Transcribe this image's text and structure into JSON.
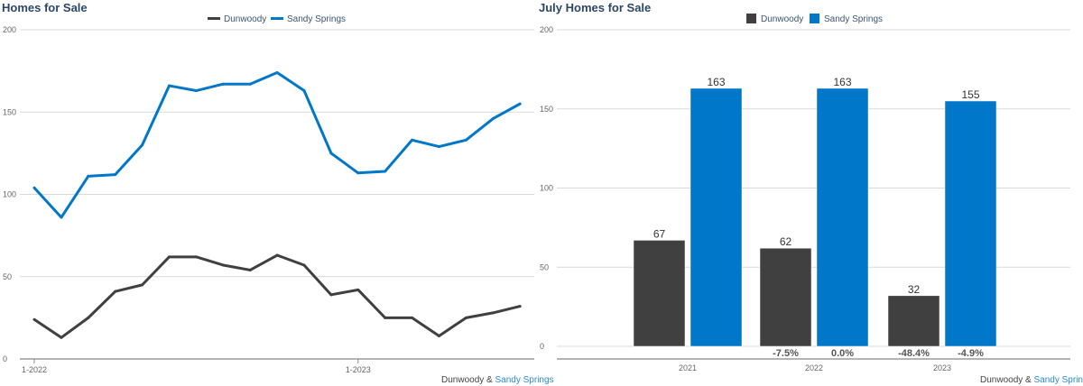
{
  "colors": {
    "Dunwoody": "#404040",
    "Sandy Springs": "#0077c8",
    "title": "#2c4766",
    "grid": "#d9d9d9"
  },
  "chart_data": [
    {
      "type": "line",
      "title": "Homes for Sale",
      "legend": [
        "Dunwoody",
        "Sandy Springs"
      ],
      "legend_position": "top",
      "ylim": [
        0,
        200
      ],
      "yticks": [
        0,
        50,
        100,
        150,
        200
      ],
      "grid": true,
      "x": [
        "1-2022",
        "2-2022",
        "3-2022",
        "4-2022",
        "5-2022",
        "6-2022",
        "7-2022",
        "8-2022",
        "9-2022",
        "10-2022",
        "11-2022",
        "12-2022",
        "1-2023",
        "2-2023",
        "3-2023",
        "4-2023",
        "5-2023",
        "6-2023",
        "7-2023"
      ],
      "xtick_labels": [
        "1-2022",
        "1-2023"
      ],
      "series": [
        {
          "name": "Dunwoody",
          "values": [
            24,
            13,
            25,
            41,
            45,
            62,
            62,
            57,
            54,
            63,
            57,
            39,
            42,
            25,
            25,
            14,
            25,
            28,
            32
          ]
        },
        {
          "name": "Sandy Springs",
          "values": [
            104,
            86,
            111,
            112,
            130,
            166,
            163,
            167,
            167,
            174,
            163,
            125,
            113,
            114,
            133,
            129,
            133,
            146,
            155
          ]
        }
      ],
      "credit": {
        "a": "Dunwoody",
        "sep": " & ",
        "b": "Sandy Springs"
      }
    },
    {
      "type": "bar",
      "title": "July Homes for Sale",
      "legend": [
        "Dunwoody",
        "Sandy Springs"
      ],
      "legend_position": "top",
      "ylim": [
        0,
        200
      ],
      "yticks": [
        0,
        50,
        100,
        150,
        200
      ],
      "grid": true,
      "categories": [
        "2021",
        "2022",
        "2023"
      ],
      "series": [
        {
          "name": "Dunwoody",
          "values": [
            67,
            62,
            32
          ],
          "change_labels": [
            "",
            "-7.5%",
            "-48.4%"
          ]
        },
        {
          "name": "Sandy Springs",
          "values": [
            163,
            163,
            155
          ],
          "change_labels": [
            "",
            "0.0%",
            "-4.9%"
          ]
        }
      ],
      "credit": {
        "a": "Dunwoody",
        "sep": " & ",
        "b": "Sandy Springs"
      }
    }
  ]
}
